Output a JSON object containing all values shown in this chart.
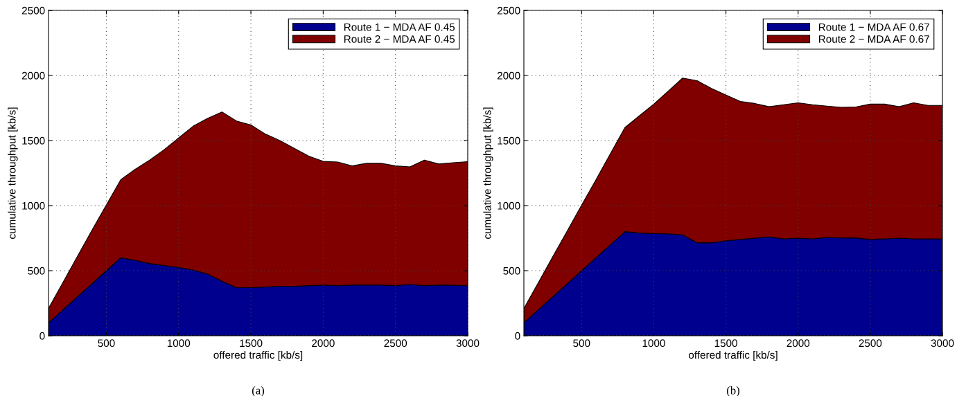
{
  "chart_data": [
    {
      "type": "area",
      "stacked": true,
      "xlabel": "offered traffic [kb/s]",
      "ylabel": "cumulative throughput [kb/s]",
      "annotations": [
        "(a)"
      ],
      "x": [
        100,
        200,
        300,
        400,
        500,
        600,
        700,
        800,
        900,
        1000,
        1100,
        1200,
        1300,
        1400,
        1500,
        1600,
        1700,
        1800,
        1900,
        2000,
        2100,
        2200,
        2300,
        2400,
        2500,
        2600,
        2700,
        2800,
        2900,
        3000
      ],
      "series": [
        {
          "name": "Route 1 − MDA AF 0.45",
          "color": "#00008f",
          "values": [
            100,
            200,
            300,
            400,
            500,
            600,
            580,
            555,
            540,
            525,
            505,
            475,
            420,
            370,
            370,
            375,
            380,
            380,
            385,
            390,
            385,
            390,
            390,
            390,
            385,
            395,
            385,
            390,
            388,
            385
          ]
        },
        {
          "name": "Route 2 − MDA AF 0.45",
          "color": "#800000",
          "values": [
            110,
            210,
            310,
            410,
            505,
            600,
            700,
            795,
            890,
            995,
            1105,
            1195,
            1300,
            1280,
            1250,
            1175,
            1120,
            1060,
            995,
            950,
            950,
            915,
            935,
            935,
            920,
            903,
            965,
            930,
            942,
            953
          ]
        }
      ],
      "xlim": [
        100,
        3000
      ],
      "xticks": [
        500,
        1000,
        1500,
        2000,
        2500,
        3000
      ],
      "ylim": [
        0,
        2500
      ],
      "yticks": [
        0,
        500,
        1000,
        1500,
        2000,
        2500
      ],
      "grid": true,
      "legend": "top right"
    },
    {
      "type": "area",
      "stacked": true,
      "xlabel": "offered traffic [kb/s]",
      "ylabel": "cumulative throughput [kb/s]",
      "annotations": [
        "(b)"
      ],
      "x": [
        100,
        200,
        300,
        400,
        500,
        600,
        700,
        800,
        900,
        1000,
        1100,
        1200,
        1300,
        1400,
        1500,
        1600,
        1700,
        1800,
        1900,
        2000,
        2100,
        2200,
        2300,
        2400,
        2500,
        2600,
        2700,
        2800,
        2900,
        3000
      ],
      "series": [
        {
          "name": "Route 1 − MDA AF 0.67",
          "color": "#00008f",
          "values": [
            100,
            200,
            300,
            400,
            500,
            600,
            700,
            800,
            790,
            785,
            783,
            775,
            715,
            715,
            730,
            740,
            750,
            760,
            745,
            750,
            745,
            755,
            752,
            752,
            740,
            745,
            750,
            745,
            745,
            745
          ]
        },
        {
          "name": "Route 2 − MDA AF 0.67",
          "color": "#800000",
          "values": [
            110,
            208,
            307,
            405,
            504,
            600,
            700,
            800,
            900,
            995,
            1097,
            1205,
            1245,
            1185,
            1120,
            1060,
            1035,
            1000,
            1030,
            1040,
            1030,
            1010,
            1003,
            1006,
            1040,
            1035,
            1010,
            1045,
            1025,
            1025
          ]
        }
      ],
      "xlim": [
        100,
        3000
      ],
      "xticks": [
        500,
        1000,
        1500,
        2000,
        2500,
        3000
      ],
      "ylim": [
        0,
        2500
      ],
      "yticks": [
        0,
        500,
        1000,
        1500,
        2000,
        2500
      ],
      "grid": true,
      "legend": "top right"
    }
  ]
}
